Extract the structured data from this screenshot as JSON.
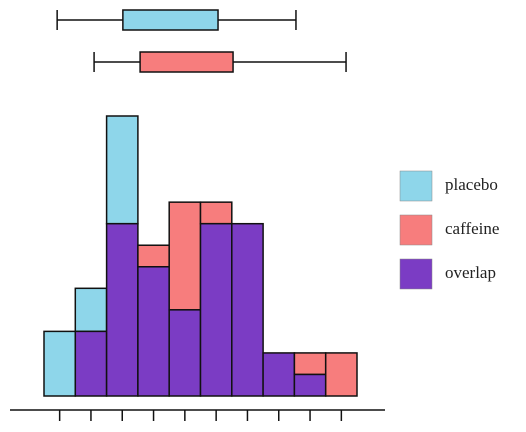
{
  "chart_data": {
    "type": "histogram",
    "categories": [
      null,
      null,
      null,
      null,
      null,
      null,
      null,
      null,
      null,
      null
    ],
    "series": [
      {
        "name": "placebo",
        "color": "#8ed6ea",
        "values": [
          3,
          5,
          13,
          6,
          4,
          8,
          8,
          2,
          1,
          0
        ]
      },
      {
        "name": "caffeine",
        "color": "#f77d7d",
        "values": [
          0,
          3,
          8,
          7,
          9,
          9,
          8,
          2,
          2,
          2
        ]
      }
    ],
    "overlap": {
      "name": "overlap",
      "color": "#7b3cc4"
    },
    "xlim": [
      0,
      10
    ],
    "boxplots": [
      {
        "series": "placebo",
        "min": 0.42,
        "q1": 2.52,
        "q3": 5.56,
        "max": 8.05
      },
      {
        "series": "caffeine",
        "min": 1.6,
        "q1": 3.07,
        "q3": 6.04,
        "max": 9.65
      }
    ]
  }
}
